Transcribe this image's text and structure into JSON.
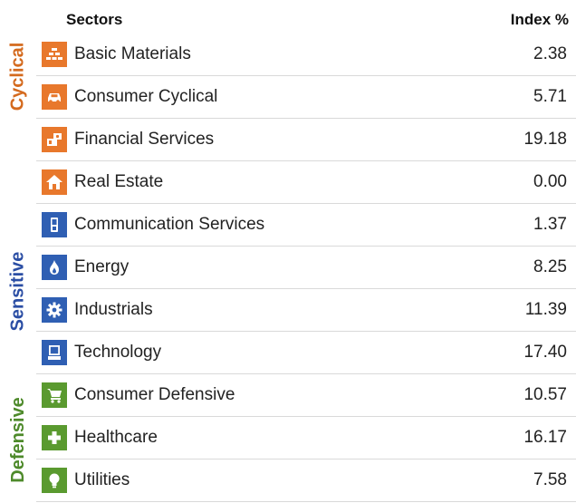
{
  "header": {
    "sectors_label": "Sectors",
    "index_label": "Index %"
  },
  "groups": {
    "cyclical": "Cyclical",
    "sensitive": "Sensitive",
    "defensive": "Defensive"
  },
  "colors": {
    "cyclical": "#e8782c",
    "sensitive": "#2f5fb3",
    "defensive": "#5a9a2f"
  },
  "sectors": [
    {
      "name": "Basic Materials",
      "value": "2.38",
      "group": "cyclical",
      "icon": "bricks-icon"
    },
    {
      "name": "Consumer Cyclical",
      "value": "5.71",
      "group": "cyclical",
      "icon": "car-icon"
    },
    {
      "name": "Financial Services",
      "value": "19.18",
      "group": "cyclical",
      "icon": "money-icon"
    },
    {
      "name": "Real Estate",
      "value": "0.00",
      "group": "cyclical",
      "icon": "house-icon"
    },
    {
      "name": "Communication Services",
      "value": "1.37",
      "group": "sensitive",
      "icon": "phone-icon"
    },
    {
      "name": "Energy",
      "value": "8.25",
      "group": "sensitive",
      "icon": "flame-icon"
    },
    {
      "name": "Industrials",
      "value": "11.39",
      "group": "sensitive",
      "icon": "gear-icon"
    },
    {
      "name": "Technology",
      "value": "17.40",
      "group": "sensitive",
      "icon": "computer-icon"
    },
    {
      "name": "Consumer Defensive",
      "value": "10.57",
      "group": "defensive",
      "icon": "cart-icon"
    },
    {
      "name": "Healthcare",
      "value": "16.17",
      "group": "defensive",
      "icon": "cross-icon"
    },
    {
      "name": "Utilities",
      "value": "7.58",
      "group": "defensive",
      "icon": "lightbulb-icon"
    }
  ]
}
